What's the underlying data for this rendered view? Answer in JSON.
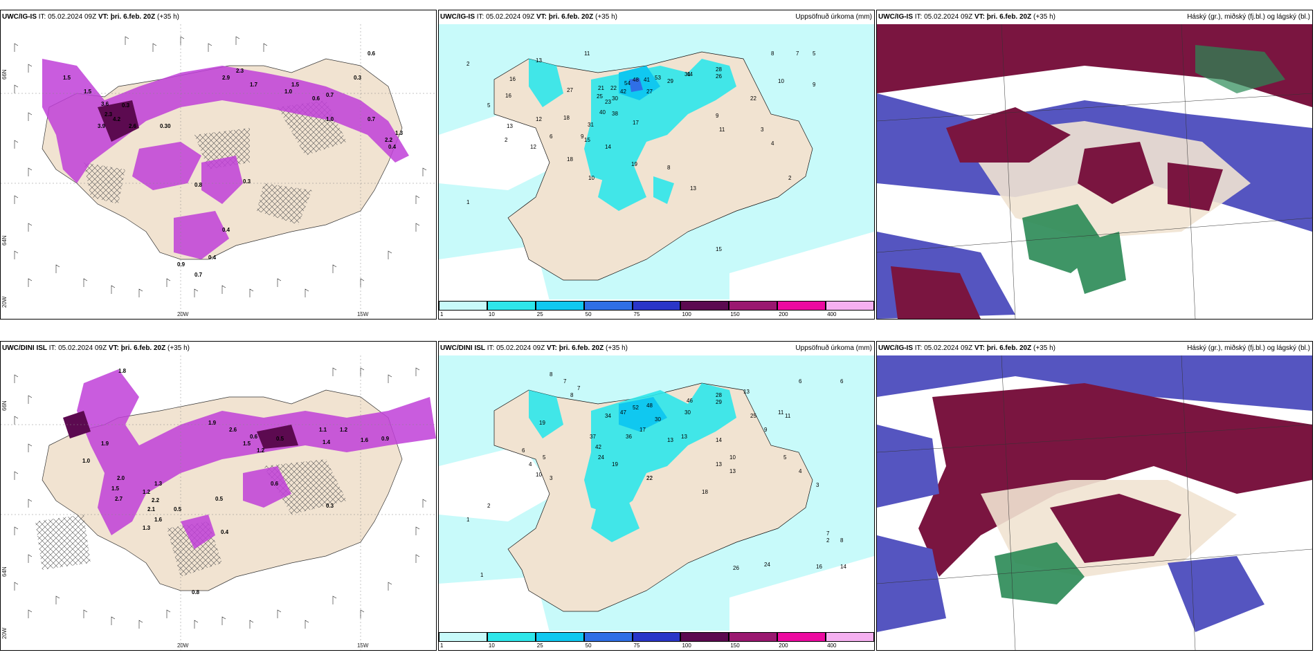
{
  "panels": [
    {
      "model": "UWC/IG-IS",
      "it_label": "IT:",
      "it": "05.02.2024 09Z",
      "vt_label": "VT:",
      "vt": "þri. 6.feb. 20Z",
      "lead": "(+35 h)",
      "right_title": "",
      "axis": {
        "bottom": [
          "20W",
          "15W"
        ],
        "left": [
          "66N",
          "64N",
          "20W"
        ]
      },
      "values": [
        "1.5",
        "0.3",
        "3.6",
        "2.3",
        "3.9",
        "4.2",
        "2.9",
        "2.3",
        "1.0",
        "0.7",
        "0.6",
        "0.3",
        "1.0",
        "0.8",
        "0.3",
        "0.4",
        "0.4",
        "0.9",
        "0.7",
        "1.5",
        "0.6",
        "0.7",
        "1.3",
        "0.4",
        "0.30",
        "1.5",
        "2.6",
        "1.7",
        "2.2"
      ]
    },
    {
      "model": "UWC/IG-IS",
      "it_label": "IT:",
      "it": "05.02.2024 09Z",
      "vt_label": "VT:",
      "vt": "þri. 6.feb. 20Z",
      "lead": "(+35 h)",
      "right_title": "Uppsöfnuð úrkoma (mm)",
      "values": [
        "2",
        "11",
        "13",
        "16",
        "27",
        "21",
        "22",
        "54",
        "48",
        "41",
        "53",
        "29",
        "44",
        "28",
        "26",
        "22",
        "10",
        "8",
        "7",
        "5",
        "9",
        "30",
        "42",
        "27",
        "38",
        "40",
        "17",
        "31",
        "14",
        "15",
        "23",
        "10",
        "19",
        "11",
        "9",
        "6",
        "3",
        "4",
        "2",
        "1",
        "13",
        "12",
        "25",
        "31",
        "15",
        "18",
        "9",
        "2",
        "5",
        "18",
        "13",
        "12",
        "8",
        "16"
      ]
    },
    {
      "model": "UWC/IG-IS",
      "it_label": "IT:",
      "it": "05.02.2024 09Z",
      "vt_label": "VT:",
      "vt": "þri. 6.feb. 20Z",
      "lead": "(+35 h)",
      "right_title": "Háský (gr.), miðský (fj.bl.) og lágský (bl.)"
    },
    {
      "model": "UWC/DINI ISL",
      "it_label": "IT:",
      "it": "05.02.2024 09Z",
      "vt_label": "VT:",
      "vt": "þri. 6.feb. 20Z",
      "lead": "(+35 h)",
      "right_title": "",
      "axis": {
        "bottom": [
          "20W",
          "15W"
        ],
        "left": [
          "66N",
          "64N",
          "20W"
        ]
      },
      "values": [
        "1.8",
        "1.9",
        "2.7",
        "1.5",
        "2.0",
        "1.3",
        "1.2",
        "2.1",
        "1.6",
        "1.3",
        "0.5",
        "0.5",
        "1.9",
        "2.6",
        "1.5",
        "1.2",
        "0.6",
        "1.1",
        "1.2",
        "1.4",
        "1.6",
        "0.9",
        "0.5",
        "0.4",
        "0.6",
        "0.3",
        "1.0",
        "0.8",
        "2.2"
      ]
    },
    {
      "model": "UWC/DINI ISL",
      "it_label": "IT:",
      "it": "05.02.2024 09Z",
      "vt_label": "VT:",
      "vt": "þri. 6.feb. 20Z",
      "lead": "(+35 h)",
      "right_title": "Uppsöfnuð úrkoma (mm)",
      "values": [
        "8",
        "7",
        "6",
        "13",
        "22",
        "19",
        "34",
        "47",
        "52",
        "48",
        "46",
        "30",
        "28",
        "29",
        "25",
        "17",
        "13",
        "11",
        "37",
        "42",
        "24",
        "30",
        "19",
        "36",
        "13",
        "14",
        "10",
        "22",
        "18",
        "13",
        "26",
        "24",
        "16",
        "14",
        "9",
        "5",
        "4",
        "3",
        "2",
        "1",
        "8",
        "7",
        "6",
        "5",
        "4",
        "3",
        "2",
        "1",
        "6",
        "7",
        "8",
        "10",
        "11",
        "13"
      ]
    },
    {
      "model": "UWC/IG-IS",
      "it_label": "IT:",
      "it": "05.02.2024 09Z",
      "vt_label": "VT:",
      "vt": "þri. 6.feb. 20Z",
      "lead": "(+35 h)",
      "right_title": "Háský (gr.), miðský (fj.bl.) og lágský (bl.)"
    }
  ],
  "colorbar": {
    "ticks": [
      "1",
      "10",
      "25",
      "50",
      "75",
      "100",
      "150",
      "200",
      "400"
    ],
    "colors": [
      "#c8fafa",
      "#2ee6ea",
      "#10c8f0",
      "#2f6fe6",
      "#2a35c8",
      "#5c0a50",
      "#9a1870",
      "#ec0aa0",
      "#f5b0f0"
    ]
  },
  "colors": {
    "land": "#f1e3d1",
    "precip_light": "#c8fafa",
    "precip_cyan": "#2ee6ea",
    "high_cloud": "#7a1540",
    "mid_cloud": "#5555c0",
    "low_cloud": "#2a8a55",
    "snow_pink": "#c040d8"
  }
}
